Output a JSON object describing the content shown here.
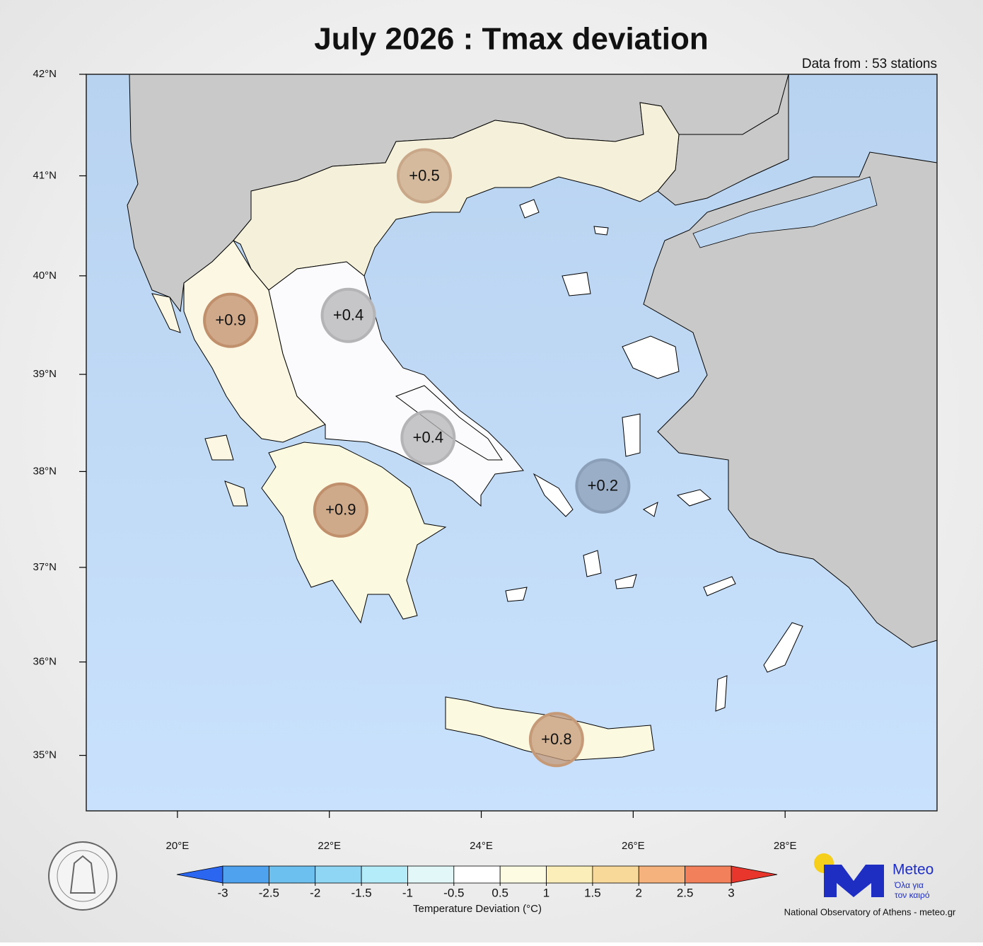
{
  "chart_data": {
    "type": "map",
    "title": "July 2026 : Tmax deviation",
    "subtitle": "Data from : 53 stations",
    "projection": "mercator",
    "xlim": [
      18.8,
      30.0
    ],
    "ylim": [
      34.4,
      42.0
    ],
    "xticks": [
      {
        "value": 20,
        "label": "20°E"
      },
      {
        "value": 22,
        "label": "22°E"
      },
      {
        "value": 24,
        "label": "24°E"
      },
      {
        "value": 26,
        "label": "26°E"
      },
      {
        "value": 28,
        "label": "28°E"
      }
    ],
    "yticks": [
      {
        "value": 35,
        "label": "35°N"
      },
      {
        "value": 36,
        "label": "36°N"
      },
      {
        "value": 37,
        "label": "37°N"
      },
      {
        "value": 38,
        "label": "38°N"
      },
      {
        "value": 39,
        "label": "39°N"
      },
      {
        "value": 40,
        "label": "40°N"
      },
      {
        "value": 41,
        "label": "41°N"
      },
      {
        "value": 42,
        "label": "42°N"
      }
    ],
    "stations": {
      "lon": [
        23.25,
        20.7,
        22.25,
        23.3,
        25.6,
        22.15,
        24.99
      ],
      "lat": [
        41.0,
        39.55,
        39.6,
        38.35,
        37.85,
        37.6,
        35.17
      ],
      "values": [
        0.5,
        0.9,
        0.4,
        0.4,
        0.2,
        0.9,
        0.8
      ],
      "value_labels": [
        "+0.5",
        "+0.9",
        "+0.4",
        "+0.4",
        "+0.2",
        "+0.9",
        "+0.8"
      ],
      "colors": [
        "#c9a88a",
        "#c08f6c",
        "#b4b4b6",
        "#b4b4b6",
        "#8c9fb8",
        "#c08f6c",
        "#c59a78"
      ]
    },
    "colorbar": {
      "label": "Temperature Deviation (°C)",
      "ticks": [
        -3,
        -2.5,
        -2,
        -1.5,
        -1,
        -0.5,
        0.5,
        1,
        1.5,
        2,
        2.5,
        3
      ],
      "colors": [
        "#4fa3ee",
        "#6cc0f0",
        "#8fd6f5",
        "#b5ecfa",
        "#e2f8f8",
        "#ffffff",
        "#fefbe3",
        "#fbeeb8",
        "#f9d99a",
        "#f6b27d",
        "#f2815b"
      ],
      "under_color": "#2b66f0",
      "over_color": "#e8362c"
    },
    "logo": {
      "name": "Meteo",
      "tagline_1": "Όλα για",
      "tagline_2": "τον καιρό"
    },
    "credit": "National Observatory of Athens - meteo.gr"
  }
}
